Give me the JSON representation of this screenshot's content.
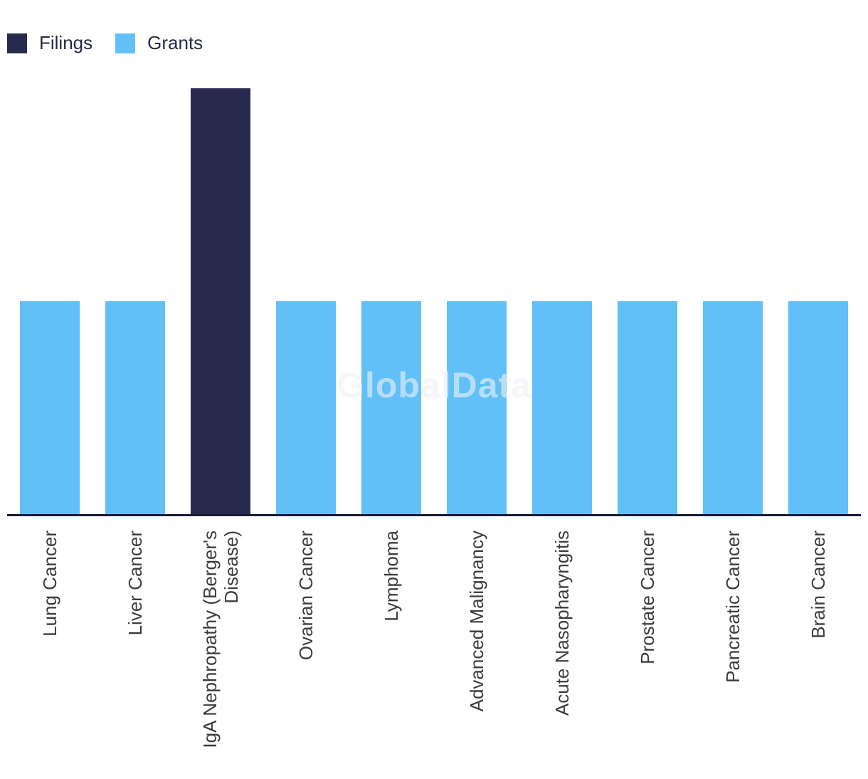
{
  "legend": {
    "items": [
      {
        "label": "Filings",
        "color": "#272a4c"
      },
      {
        "label": "Grants",
        "color": "#60c0f7"
      }
    ]
  },
  "watermark": {
    "text": "GlobalData"
  },
  "colors": {
    "axis_line": "#181c33",
    "label_text": "#3b3b3b",
    "legend_text": "#262b45",
    "watermark": "rgba(238,241,245,0.62)"
  },
  "chart_data": {
    "type": "bar",
    "title": "",
    "xlabel": "",
    "ylabel": "",
    "categories": [
      "Lung Cancer",
      "Liver Cancer",
      "IgA Nephropathy (Berger's Disease)",
      "Ovarian Cancer",
      "Lymphoma",
      "Advanced Malignancy",
      "Acute Nasopharyngitis",
      "Prostate Cancer",
      "Pancreatic Cancer",
      "Brain Cancer"
    ],
    "series": [
      {
        "name": "Filings",
        "color": "#272a4c",
        "values": [
          0,
          0,
          2,
          0,
          0,
          0,
          0,
          0,
          0,
          0
        ]
      },
      {
        "name": "Grants",
        "color": "#60c0f7",
        "values": [
          1,
          1,
          0,
          1,
          1,
          1,
          1,
          1,
          1,
          1
        ]
      }
    ],
    "ylim": [
      0,
      2
    ],
    "y_axis_visible": false,
    "x_label_rotation": -90,
    "grid": false,
    "legend_position": "top-left"
  }
}
